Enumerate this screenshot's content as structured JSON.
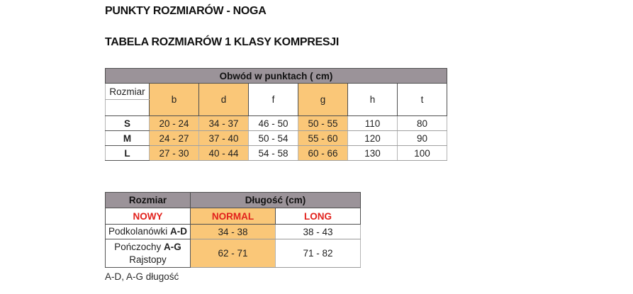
{
  "page": {
    "heading1": "PUNKTY ROZMIARÓW - NOGA",
    "heading2": "TABELA ROZMIARÓW 1 KLASY KOMPRESJI",
    "footnote": "A-D, A-G długość"
  },
  "colors": {
    "header_gray": "#9B9399",
    "highlight_orange": "#FAC778",
    "accent_red": "#E2211C"
  },
  "size_points_table": {
    "title": "Obwód w punktach ( cm)",
    "corner_label": "Rozmiar",
    "columns": [
      {
        "label": "b",
        "highlighted": true
      },
      {
        "label": "d",
        "highlighted": true
      },
      {
        "label": "f",
        "highlighted": false
      },
      {
        "label": "g",
        "highlighted": true
      },
      {
        "label": "h",
        "highlighted": false
      },
      {
        "label": "t",
        "highlighted": false
      }
    ],
    "rows": [
      {
        "size": "S",
        "values": [
          "20 - 24",
          "34 - 37",
          "46 - 50",
          "50 - 55",
          "110",
          "80"
        ]
      },
      {
        "size": "M",
        "values": [
          "24 - 27",
          "37 - 40",
          "50 - 54",
          "55 - 60",
          "120",
          "90"
        ]
      },
      {
        "size": "L",
        "values": [
          "27 - 30",
          "40 - 44",
          "54 - 58",
          "60 - 66",
          "130",
          "100"
        ]
      }
    ]
  },
  "length_table": {
    "col_header_size": "Rozmiar",
    "col_header_length": "Długość (cm)",
    "subheaders": [
      "NOWY",
      "NORMAL",
      "LONG"
    ],
    "rows": [
      {
        "name": "Podkolanówki ",
        "name_bold": "A-D",
        "name_line2": "",
        "normal": "34 - 38",
        "long": "38 - 43"
      },
      {
        "name": "Pończochy ",
        "name_bold": "A-G",
        "name_line2": "Rajstopy",
        "normal": "62 - 71",
        "long": "71 - 82"
      }
    ]
  }
}
